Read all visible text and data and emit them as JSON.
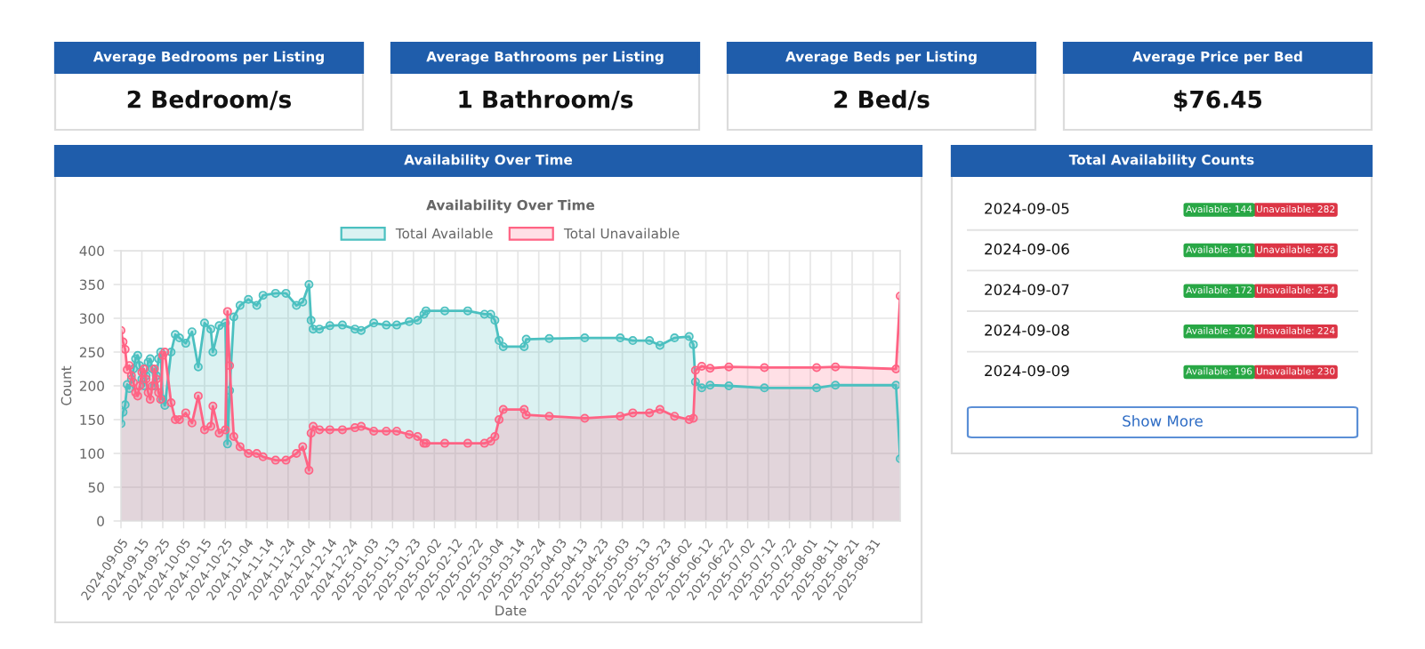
{
  "chart_data": [
    {
      "type": "other",
      "title": "Average Bedrooms per Listing",
      "annotations": [
        "2 Bedroom/s"
      ]
    },
    {
      "type": "other",
      "title": "Average Bathrooms per Listing",
      "annotations": [
        "1 Bathroom/s"
      ]
    },
    {
      "type": "other",
      "title": "Average Beds per Listing",
      "annotations": [
        "2 Bed/s"
      ]
    },
    {
      "type": "other",
      "title": "Average Price per Bed",
      "annotations": [
        "$76.45"
      ]
    },
    {
      "type": "area",
      "title": "Availability Over Time",
      "subtitle": "Availability Over Time",
      "xlabel": "Date",
      "ylabel": "Count",
      "marker": "circle",
      "grid": true,
      "legend": "top",
      "x": [
        "2024-09-05",
        "2024-09-06",
        "2024-09-07",
        "2024-09-08",
        "2024-09-09",
        "2024-09-10",
        "2024-09-11",
        "2024-09-12",
        "2024-09-13",
        "2024-09-14",
        "2024-09-15",
        "2024-09-16",
        "2024-09-17",
        "2024-09-18",
        "2024-09-19",
        "2024-09-20",
        "2024-09-21",
        "2024-09-22",
        "2024-09-23",
        "2024-09-24",
        "2024-09-25",
        "2024-09-26",
        "2024-09-29",
        "2024-10-01",
        "2024-10-03",
        "2024-10-06",
        "2024-10-09",
        "2024-10-12",
        "2024-10-15",
        "2024-10-18",
        "2024-10-19",
        "2024-10-22",
        "2024-10-25",
        "2024-10-26",
        "2024-10-27",
        "2024-10-29",
        "2024-11-01",
        "2024-11-05",
        "2024-11-09",
        "2024-11-12",
        "2024-11-18",
        "2024-11-23",
        "2024-11-28",
        "2024-12-01",
        "2024-12-04",
        "2024-12-05",
        "2024-12-06",
        "2024-12-09",
        "2024-12-14",
        "2024-12-20",
        "2024-12-26",
        "2024-12-29",
        "2025-01-04",
        "2025-01-10",
        "2025-01-15",
        "2025-01-21",
        "2025-01-25",
        "2025-01-28",
        "2025-01-29",
        "2025-02-07",
        "2025-02-18",
        "2025-02-26",
        "2025-03-01",
        "2025-03-03",
        "2025-03-05",
        "2025-03-07",
        "2025-03-17",
        "2025-03-18",
        "2025-03-29",
        "2025-04-15",
        "2025-05-02",
        "2025-05-08",
        "2025-05-16",
        "2025-05-21",
        "2025-05-28",
        "2025-06-04",
        "2025-06-06",
        "2025-06-07",
        "2025-06-10",
        "2025-06-14",
        "2025-06-23",
        "2025-07-10",
        "2025-08-04",
        "2025-08-13",
        "2025-09-11",
        "2025-09-13"
      ],
      "series": [
        {
          "name": "Total Available",
          "color": "#4bc0c0",
          "values": [
            144,
            161,
            172,
            202,
            196,
            210,
            225,
            240,
            245,
            230,
            210,
            200,
            215,
            235,
            240,
            225,
            200,
            215,
            240,
            250,
            180,
            171,
            250,
            276,
            271,
            263,
            280,
            228,
            293,
            284,
            250,
            289,
            293,
            114,
            193,
            302,
            319,
            328,
            319,
            334,
            337,
            337,
            319,
            324,
            350,
            297,
            284,
            284,
            289,
            290,
            284,
            282,
            293,
            290,
            290,
            295,
            297,
            306,
            311,
            311,
            311,
            306,
            306,
            297,
            267,
            258,
            258,
            269,
            270,
            271,
            271,
            267,
            267,
            260,
            271,
            273,
            261,
            206,
            197,
            201,
            200,
            197,
            197,
            201,
            201,
            92
          ]
        },
        {
          "name": "Total Unavailable",
          "color": "#ff6384",
          "values": [
            282,
            265,
            254,
            224,
            230,
            215,
            205,
            190,
            185,
            200,
            220,
            225,
            210,
            190,
            180,
            200,
            225,
            210,
            190,
            180,
            245,
            250,
            175,
            150,
            150,
            160,
            145,
            185,
            135,
            140,
            170,
            130,
            135,
            310,
            230,
            125,
            110,
            100,
            100,
            95,
            90,
            90,
            100,
            110,
            75,
            130,
            140,
            135,
            135,
            135,
            138,
            140,
            133,
            133,
            133,
            128,
            125,
            115,
            115,
            115,
            115,
            115,
            118,
            125,
            150,
            165,
            165,
            157,
            155,
            152,
            155,
            160,
            160,
            165,
            155,
            150,
            152,
            223,
            229,
            226,
            228,
            227,
            227,
            228,
            225,
            333
          ]
        }
      ],
      "xlim": [
        "2024-09-05",
        "2025-09-13"
      ],
      "xticks": [
        "2024-09-05",
        "2024-09-15",
        "2024-09-25",
        "2024-10-05",
        "2024-10-15",
        "2024-10-25",
        "2024-11-04",
        "2024-11-14",
        "2024-11-24",
        "2024-12-04",
        "2024-12-14",
        "2024-12-24",
        "2025-01-03",
        "2025-01-13",
        "2025-01-23",
        "2025-02-02",
        "2025-02-12",
        "2025-02-22",
        "2025-03-04",
        "2025-03-14",
        "2025-03-24",
        "2025-04-03",
        "2025-04-13",
        "2025-04-23",
        "2025-05-03",
        "2025-05-13",
        "2025-05-23",
        "2025-06-02",
        "2025-06-12",
        "2025-06-22",
        "2025-07-02",
        "2025-07-12",
        "2025-07-22",
        "2025-08-01",
        "2025-08-11",
        "2025-08-21",
        "2025-08-31"
      ],
      "ylim": [
        0,
        400
      ],
      "yticks": [
        0,
        50,
        100,
        150,
        200,
        250,
        300,
        350,
        400
      ]
    },
    {
      "type": "other",
      "title": "Total Availability Counts",
      "annotations": [
        "2024-09-05",
        "Available: 144",
        "Unavailable: 282",
        "2024-09-06",
        "Available: 161",
        "Unavailable: 265",
        "2024-09-07",
        "Available: 172",
        "Unavailable: 254",
        "2024-09-08",
        "Available: 202",
        "Unavailable: 224",
        "2024-09-09",
        "Available: 196",
        "Unavailable: 230",
        "Show More"
      ]
    }
  ]
}
